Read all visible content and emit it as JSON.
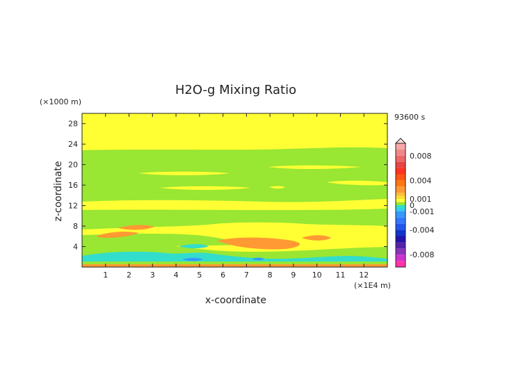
{
  "chart_data": {
    "type": "heatmap",
    "title": "H2O-g Mixing Ratio",
    "time_label": "93600 s",
    "xlabel": "x-coordinate",
    "ylabel": "z-coordinate",
    "x_unit": "(×1E4 m)",
    "y_unit": "(×1000 m)",
    "xlim": [
      0,
      13
    ],
    "ylim": [
      0,
      30
    ],
    "x_ticks": [
      "1",
      "2",
      "3",
      "4",
      "5",
      "6",
      "7",
      "8",
      "9",
      "10",
      "11",
      "12"
    ],
    "y_ticks": [
      "4",
      "8",
      "12",
      "16",
      "20",
      "24",
      "28"
    ],
    "colorbar": {
      "labels": [
        "0.008",
        "0.004",
        "0.001",
        "0",
        "-0.001",
        "-0.004",
        "-0.008"
      ],
      "values": [
        0.008,
        0.004,
        0.001,
        0,
        -0.001,
        -0.004,
        -0.008
      ],
      "range": [
        -0.01,
        0.01
      ]
    },
    "colors": {
      "yellow": "#ffff33",
      "green": "#99e633",
      "orange": "#ff9933",
      "cyan": "#33ddcc",
      "blue": "#3399ff"
    }
  }
}
